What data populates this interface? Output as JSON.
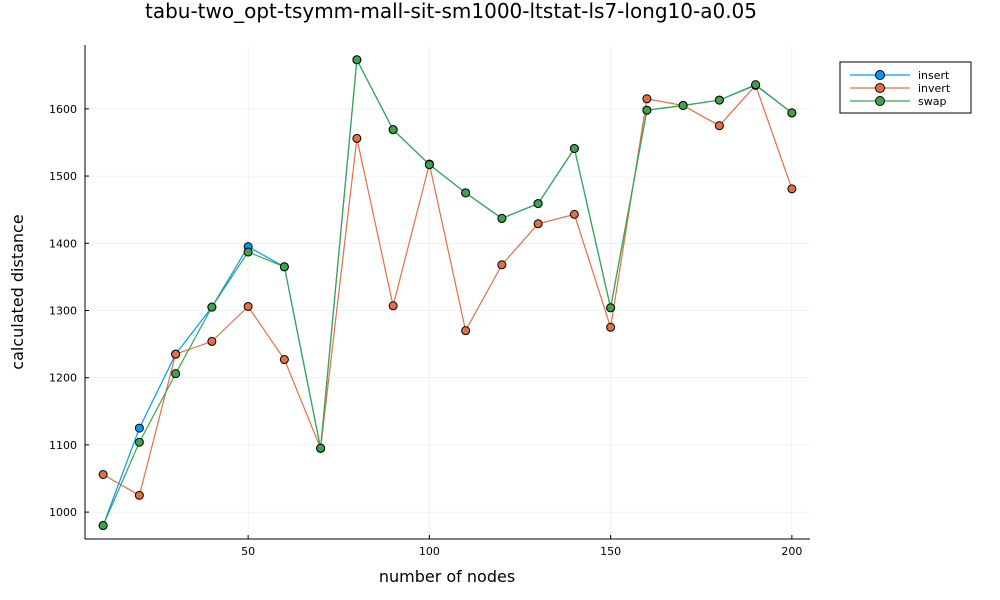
{
  "chart_data": {
    "type": "line",
    "title": "tabu-two_opt-tsymm-mall-sit-sm1000-ltstat-ls7-long10-a0.05",
    "xlabel": "number of nodes",
    "ylabel": "calculated distance",
    "xlim": [
      5,
      205
    ],
    "ylim": [
      960,
      1695
    ],
    "x_ticks": [
      50,
      100,
      150,
      200
    ],
    "y_ticks": [
      1000,
      1100,
      1200,
      1300,
      1400,
      1500,
      1600
    ],
    "grid": true,
    "legend_position": "top-right",
    "x": [
      10,
      20,
      30,
      40,
      50,
      60,
      70,
      80,
      90,
      100,
      110,
      120,
      130,
      140,
      150,
      160,
      170,
      180,
      190,
      200
    ],
    "series": [
      {
        "name": "insert",
        "color": "#009AFA",
        "values": [
          980,
          1125,
          1235,
          1305,
          1395,
          1365,
          1095,
          1673,
          1569,
          1517,
          1475,
          1437,
          1459,
          1541,
          1304,
          1598,
          1605,
          1613,
          1635,
          1594
        ]
      },
      {
        "name": "invert",
        "color": "#E26F46",
        "values": [
          1056,
          1025,
          1235,
          1254,
          1306,
          1227,
          1095,
          1556,
          1307,
          1518,
          1270,
          1368,
          1429,
          1443,
          1275,
          1615,
          1605,
          1575,
          1635,
          1481
        ]
      },
      {
        "name": "swap",
        "color": "#3DA44D",
        "values": [
          980,
          1104,
          1206,
          1305,
          1387,
          1365,
          1095,
          1673,
          1569,
          1517,
          1475,
          1437,
          1459,
          1541,
          1304,
          1598,
          1605,
          1613,
          1636,
          1594
        ]
      }
    ]
  }
}
